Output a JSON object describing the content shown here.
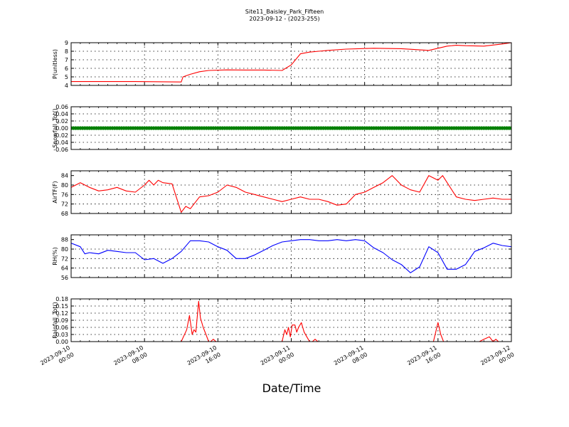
{
  "title": "Site11_Baisley_Park_Fifteen",
  "subtitle": "2023-09-12 - (2023-255)",
  "xlabel": "Date/Time",
  "x_ticks": [
    [
      "2023-09-10",
      "00:00"
    ],
    [
      "2023-09-10",
      "08:00"
    ],
    [
      "2023-09-10",
      "16:00"
    ],
    [
      "2023-09-11",
      "00:00"
    ],
    [
      "2023-09-11",
      "08:00"
    ],
    [
      "2023-09-11",
      "16:00"
    ],
    [
      "2023-09-12",
      "00:00"
    ]
  ],
  "chart_data": [
    {
      "type": "line",
      "ylabel": "P(unitless)",
      "ylim": [
        4,
        9
      ],
      "yticks": [
        "4",
        "5",
        "6",
        "7",
        "8",
        "9"
      ],
      "grid": true,
      "color": "#ff0000",
      "marker": false,
      "x_hours": [
        0,
        7,
        12,
        12.2,
        13,
        14,
        15,
        17,
        19,
        21,
        23,
        24,
        25,
        26,
        27,
        28,
        30,
        33,
        36,
        39,
        41,
        42,
        43,
        45,
        47,
        48
      ],
      "values": [
        4.45,
        4.45,
        4.4,
        5.0,
        5.3,
        5.6,
        5.75,
        5.82,
        5.8,
        5.8,
        5.75,
        6.4,
        7.7,
        7.9,
        8.0,
        8.1,
        8.25,
        8.35,
        8.3,
        8.1,
        8.6,
        8.7,
        8.65,
        8.6,
        8.85,
        9.0
      ]
    },
    {
      "type": "scatter",
      "ylabel": "Snowfall_Tot()",
      "ylim": [
        -0.06,
        0.06
      ],
      "yticks": [
        "-0.06",
        "-0.04",
        "-0.02",
        "0.00",
        "0.02",
        "0.04",
        "0.06"
      ],
      "grid": true,
      "color": "#008000",
      "marker": true,
      "x_hours": [
        0,
        48
      ],
      "values": [
        0.0,
        0.0
      ]
    },
    {
      "type": "line",
      "ylabel": "AirTF(F)",
      "ylim": [
        68,
        86
      ],
      "yticks": [
        "68",
        "72",
        "76",
        "80",
        "84"
      ],
      "grid": true,
      "color": "#ff0000",
      "marker": false,
      "x_hours": [
        0,
        1,
        2,
        3,
        4,
        5,
        6,
        7,
        8,
        8.5,
        9,
        9.5,
        10,
        11,
        12,
        12.5,
        13,
        14,
        15,
        16,
        17,
        18,
        19,
        20,
        21,
        22,
        23,
        24,
        25,
        26,
        27,
        28,
        29,
        30,
        31,
        32,
        33,
        34,
        35,
        36,
        37,
        38,
        39,
        40,
        40.5,
        41,
        42,
        43,
        44,
        45,
        46,
        47,
        48
      ],
      "values": [
        79,
        81,
        79,
        77.5,
        78,
        79,
        77.5,
        77,
        80,
        82,
        80,
        82,
        81,
        80.5,
        68.5,
        71,
        70,
        75,
        75.5,
        77,
        80,
        79,
        77,
        76,
        75,
        74,
        73,
        74,
        75,
        74,
        74,
        73,
        71.5,
        72,
        76,
        77,
        79,
        81,
        84,
        80,
        78,
        77,
        84,
        82,
        84,
        81,
        75,
        74,
        73.5,
        74,
        74.5,
        74,
        74
      ]
    },
    {
      "type": "line",
      "ylabel": "RH(%)",
      "ylim": [
        56,
        92
      ],
      "yticks": [
        "56",
        "64",
        "72",
        "80",
        "88"
      ],
      "grid": true,
      "color": "#0000ff",
      "marker": false,
      "x_hours": [
        0,
        1,
        1.5,
        2,
        3,
        4,
        5,
        6,
        7,
        8,
        9,
        10,
        11,
        12,
        13,
        14,
        15,
        16,
        17,
        18,
        19,
        20,
        21,
        22,
        23,
        24,
        25,
        26,
        27,
        28,
        29,
        30,
        31,
        32,
        33,
        34,
        35,
        36,
        37,
        38,
        39,
        40,
        41,
        42,
        43,
        44,
        45,
        46,
        47,
        48
      ],
      "values": [
        85,
        82,
        76,
        77,
        76,
        79,
        78,
        77,
        77,
        71,
        72,
        68,
        72,
        78,
        87,
        87,
        86,
        82,
        79,
        72,
        72,
        75,
        79,
        83,
        86,
        87,
        88,
        88,
        87,
        87,
        88,
        87,
        88,
        87,
        81,
        77,
        71,
        67,
        60,
        65,
        82,
        77,
        63,
        63,
        67,
        78,
        81,
        85,
        83,
        82
      ]
    },
    {
      "type": "line",
      "ylabel": "Rainfall_Tot()",
      "ylim": [
        0,
        0.18
      ],
      "yticks": [
        "0.00",
        "0.03",
        "0.06",
        "0.09",
        "0.12",
        "0.15",
        "0.18"
      ],
      "grid": true,
      "color": "#ff0000",
      "marker": false,
      "x_hours": [
        0,
        12,
        12.6,
        12.9,
        13.2,
        13.4,
        13.6,
        13.9,
        14.1,
        14.4,
        14.7,
        15.0,
        15.2,
        15.5,
        15.8,
        23.0,
        23.3,
        23.5,
        23.7,
        23.9,
        24.1,
        24.4,
        24.6,
        24.8,
        25.1,
        25.4,
        25.7,
        26.0,
        26.3,
        26.6,
        26.9,
        27.2,
        27.5,
        39.5,
        40.0,
        40.3,
        40.6,
        41.0,
        44.5,
        45.0,
        45.6,
        46.0,
        46.3,
        46.6,
        47.0,
        48.0
      ],
      "values": [
        0,
        0,
        0.05,
        0.11,
        0.03,
        0.05,
        0.04,
        0.17,
        0.1,
        0.06,
        0.03,
        0.0,
        0.0,
        0.01,
        0.0,
        0.0,
        0.05,
        0.03,
        0.06,
        0.02,
        0.07,
        0.07,
        0.04,
        0.06,
        0.08,
        0.04,
        0.02,
        0.0,
        0.0,
        0.01,
        0.0,
        0.0,
        0.0,
        0.0,
        0.08,
        0.03,
        0.0,
        0.0,
        0.0,
        0.01,
        0.02,
        0.0,
        0.01,
        0.0,
        0.0,
        0.0
      ]
    }
  ]
}
